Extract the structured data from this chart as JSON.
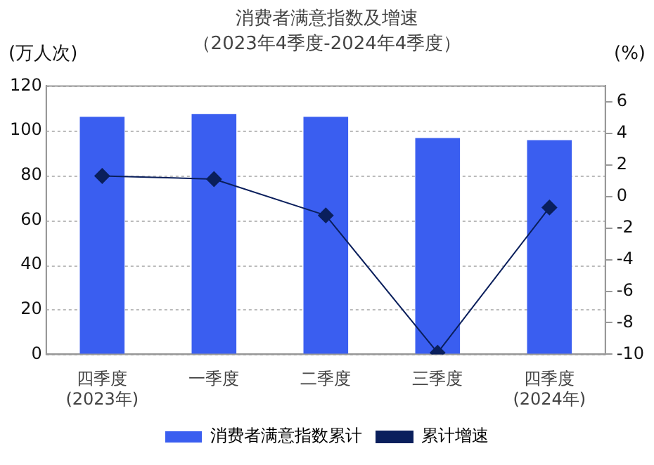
{
  "chart_data": {
    "type": "bar",
    "title": "消费者满意指数及增速",
    "subtitle": "（2023年4季度-2024年4季度）",
    "ylabel": "(万人次)",
    "y2label": "(%)",
    "categories": [
      "四季度\n(2023年)",
      "一季度",
      "二季度",
      "三季度",
      "四季度\n(2024年)"
    ],
    "series": [
      {
        "name": "消费者满意指数累计",
        "color": "#3a5ef0",
        "values": [
          106.2,
          107.5,
          106.2,
          96.7,
          95.8
        ]
      },
      {
        "name": "累计增速",
        "type": "line",
        "axis": "y2",
        "color": "#0a1f5c",
        "marker": "diamond",
        "values": [
          1.3,
          1.1,
          -1.2,
          -9.9,
          -0.7
        ]
      }
    ],
    "ylim": [
      0,
      120
    ],
    "yticks": [
      0,
      20,
      40,
      60,
      80,
      100,
      120
    ],
    "y2lim": [
      -10,
      7
    ],
    "y2ticks": [
      -10,
      -8,
      -6,
      -4,
      -2,
      0,
      2,
      4,
      6
    ],
    "grid": "y",
    "legend": "bottom"
  }
}
